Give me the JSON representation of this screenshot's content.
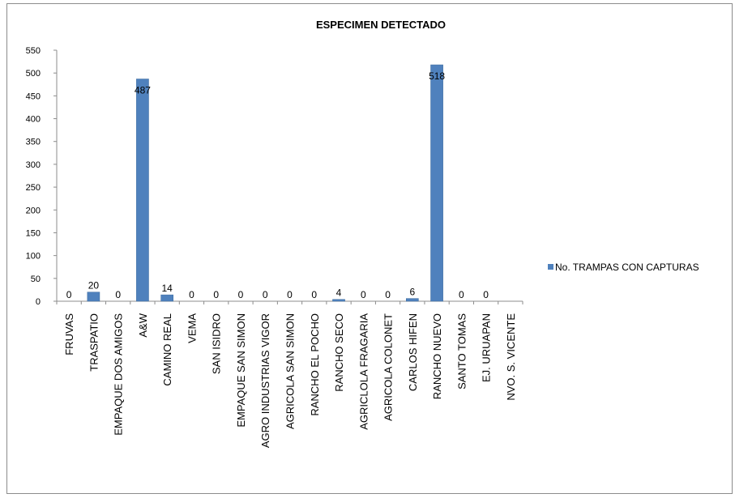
{
  "chart_data": {
    "type": "bar",
    "title": "ESPECIMEN DETECTADO",
    "xlabel": "",
    "ylabel": "",
    "ylim": [
      0,
      550
    ],
    "ytick_step": 50,
    "yticks": [
      "0",
      "50",
      "100",
      "150",
      "200",
      "250",
      "300",
      "350",
      "400",
      "450",
      "500",
      "550"
    ],
    "grid": false,
    "legend_position": "right",
    "categories": [
      "FRUVAS",
      "TRASPATIO",
      "EMPAQUE DOS AMIGOS",
      "A&W",
      "CAMINO REAL",
      "VEMA",
      "SAN ISIDRO",
      "EMPAQUE SAN SIMON",
      "AGRO INDUSTRIAS VIGOR",
      "AGRICOLA SAN SIMON",
      "RANCHO EL POCHO",
      "RANCHO SECO",
      "AGRICLOLA FRAGARIA",
      "AGRICOLA COLONET",
      "CARLOS HIFEN",
      "RANCHO NUEVO",
      "SANTO TOMAS",
      "EJ. URUAPAN",
      "NVO. S. VICENTE"
    ],
    "series": [
      {
        "name": "No. TRAMPAS CON CAPTURAS",
        "color": "#4f81bd",
        "values": [
          0,
          20,
          0,
          487,
          14,
          0,
          0,
          0,
          0,
          0,
          0,
          4,
          0,
          0,
          6,
          518,
          0,
          0,
          null
        ],
        "data_labels": [
          "0",
          "20",
          "0",
          "487",
          "14",
          "0",
          "0",
          "0",
          "0",
          "0",
          "0",
          "4",
          "0",
          "0",
          "6",
          "518",
          "0",
          "0",
          ""
        ]
      }
    ]
  }
}
